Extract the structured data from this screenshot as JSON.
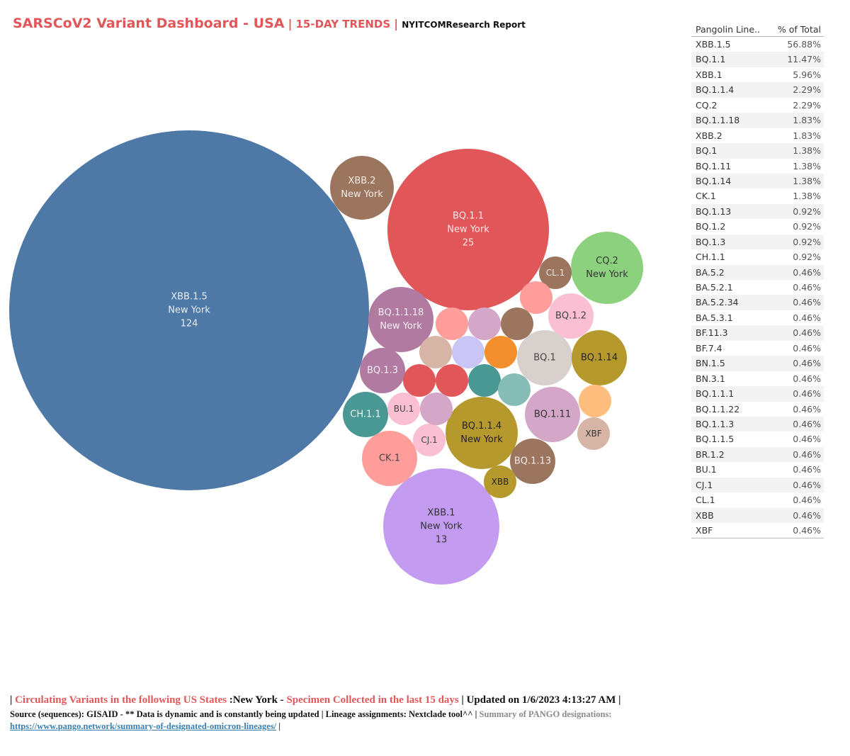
{
  "header": {
    "title": "SARSCoV2 Variant Dashboard - USA",
    "sep1": "|",
    "trend": "15-DAY TRENDS",
    "sep2": "|",
    "report": "NYITCOMResearch Report"
  },
  "chart_data": {
    "type": "bubble",
    "bubbles": [
      {
        "lineage": "XBB.1.5",
        "state": "New York",
        "count": 124,
        "color": "#4e79a7",
        "text_color": "#e8eef6"
      },
      {
        "lineage": "BQ.1.1",
        "state": "New York",
        "count": 25,
        "color": "#e15759",
        "text_color": "#fde8e8"
      },
      {
        "lineage": "XBB.1",
        "state": "New York",
        "count": 13,
        "color": "#c39bf0",
        "text_color": "#333333"
      },
      {
        "lineage": "XBB.2",
        "state": "New York",
        "color": "#9c755f",
        "text_color": "#f3ece6"
      },
      {
        "lineage": "CQ.2",
        "state": "New York",
        "color": "#8cd17d",
        "text_color": "#333333"
      },
      {
        "lineage": "BQ.1.1.18",
        "state": "New York",
        "color": "#b07aa1",
        "text_color": "#f6eef4"
      },
      {
        "lineage": "BQ.1.1.4",
        "state": "New York",
        "color": "#b6992d",
        "text_color": "#222222"
      },
      {
        "lineage": "CL.1",
        "color": "#9c755f",
        "text_color": "#f3ece6"
      },
      {
        "lineage": "BQ.1.2",
        "color": "#fabfd2",
        "text_color": "#444444"
      },
      {
        "lineage": "BQ.1",
        "color": "#d7d0cc",
        "text_color": "#444444"
      },
      {
        "lineage": "BQ.1.14",
        "color": "#b6992d",
        "text_color": "#222222"
      },
      {
        "lineage": "BQ.1.3",
        "color": "#b07aa1",
        "text_color": "#f6eef4"
      },
      {
        "lineage": "CH.1.1",
        "color": "#499894",
        "text_color": "#eef6f5"
      },
      {
        "lineage": "BU.1",
        "color": "#fabfd2",
        "text_color": "#444444"
      },
      {
        "lineage": "CJ.1",
        "color": "#fabfd2",
        "text_color": "#444444"
      },
      {
        "lineage": "CK.1",
        "color": "#ff9d9a",
        "text_color": "#444444"
      },
      {
        "lineage": "BQ.1.11",
        "color": "#d4a6c8",
        "text_color": "#333333"
      },
      {
        "lineage": "BQ.1.13",
        "color": "#9c755f",
        "text_color": "#f3ece6"
      },
      {
        "lineage": "XBB",
        "color": "#b6992d",
        "text_color": "#222222"
      },
      {
        "lineage": "XBF",
        "color": "#d7b5a6",
        "text_color": "#333333"
      },
      {
        "lineage": "",
        "color": "#ff9d9a"
      },
      {
        "lineage": "",
        "color": "#ff9d9a"
      },
      {
        "lineage": "",
        "color": "#d4a6c8"
      },
      {
        "lineage": "",
        "color": "#9c755f"
      },
      {
        "lineage": "",
        "color": "#d7b5a6"
      },
      {
        "lineage": "",
        "color": "#c9c6f5"
      },
      {
        "lineage": "",
        "color": "#f28e2b"
      },
      {
        "lineage": "",
        "color": "#e15759"
      },
      {
        "lineage": "",
        "color": "#e15759"
      },
      {
        "lineage": "",
        "color": "#499894"
      },
      {
        "lineage": "",
        "color": "#86bcb6"
      },
      {
        "lineage": "",
        "color": "#d4a6c8"
      },
      {
        "lineage": "",
        "color": "#ffbe7d"
      }
    ]
  },
  "table": {
    "col1": "Pangolin Line..",
    "col2": "% of Total",
    "rows": [
      {
        "lineage": "XBB.1.5",
        "pct": "56.88%"
      },
      {
        "lineage": "BQ.1.1",
        "pct": "11.47%"
      },
      {
        "lineage": "XBB.1",
        "pct": "5.96%"
      },
      {
        "lineage": "BQ.1.1.4",
        "pct": "2.29%"
      },
      {
        "lineage": "CQ.2",
        "pct": "2.29%"
      },
      {
        "lineage": "BQ.1.1.18",
        "pct": "1.83%"
      },
      {
        "lineage": "XBB.2",
        "pct": "1.83%"
      },
      {
        "lineage": "BQ.1",
        "pct": "1.38%"
      },
      {
        "lineage": "BQ.1.11",
        "pct": "1.38%"
      },
      {
        "lineage": "BQ.1.14",
        "pct": "1.38%"
      },
      {
        "lineage": "CK.1",
        "pct": "1.38%"
      },
      {
        "lineage": "BQ.1.13",
        "pct": "0.92%"
      },
      {
        "lineage": "BQ.1.2",
        "pct": "0.92%"
      },
      {
        "lineage": "BQ.1.3",
        "pct": "0.92%"
      },
      {
        "lineage": "CH.1.1",
        "pct": "0.92%"
      },
      {
        "lineage": "BA.5.2",
        "pct": "0.46%"
      },
      {
        "lineage": "BA.5.2.1",
        "pct": "0.46%"
      },
      {
        "lineage": "BA.5.2.34",
        "pct": "0.46%"
      },
      {
        "lineage": "BA.5.3.1",
        "pct": "0.46%"
      },
      {
        "lineage": "BF.11.3",
        "pct": "0.46%"
      },
      {
        "lineage": "BF.7.4",
        "pct": "0.46%"
      },
      {
        "lineage": "BN.1.5",
        "pct": "0.46%"
      },
      {
        "lineage": "BN.3.1",
        "pct": "0.46%"
      },
      {
        "lineage": "BQ.1.1.1",
        "pct": "0.46%"
      },
      {
        "lineage": "BQ.1.1.22",
        "pct": "0.46%"
      },
      {
        "lineage": "BQ.1.1.3",
        "pct": "0.46%"
      },
      {
        "lineage": "BQ.1.1.5",
        "pct": "0.46%"
      },
      {
        "lineage": "BR.1.2",
        "pct": "0.46%"
      },
      {
        "lineage": "BU.1",
        "pct": "0.46%"
      },
      {
        "lineage": "CJ.1",
        "pct": "0.46%"
      },
      {
        "lineage": "CL.1",
        "pct": "0.46%"
      },
      {
        "lineage": "XBB",
        "pct": "0.46%"
      },
      {
        "lineage": "XBF",
        "pct": "0.46%"
      }
    ]
  },
  "footer": {
    "line1": {
      "bar1": "| ",
      "red1": "Circulating Variants in the following US States",
      "black1": " :New York - ",
      "red2": "Specimen Collected in the last 15 days",
      "black2": " | Updated on 1/6/2023 4:13:27 AM |"
    },
    "line2": {
      "black": "Source (sequences): GISAID - ** Data is dynamic and is constantly being updated | Lineage assignments: Nextclade tool^^ |",
      "gray": " Summary of PANGO designations:"
    },
    "line3": {
      "link": "https://www.pango.network/summary-of-designated-omicron-lineages/",
      "bar": " |"
    }
  }
}
